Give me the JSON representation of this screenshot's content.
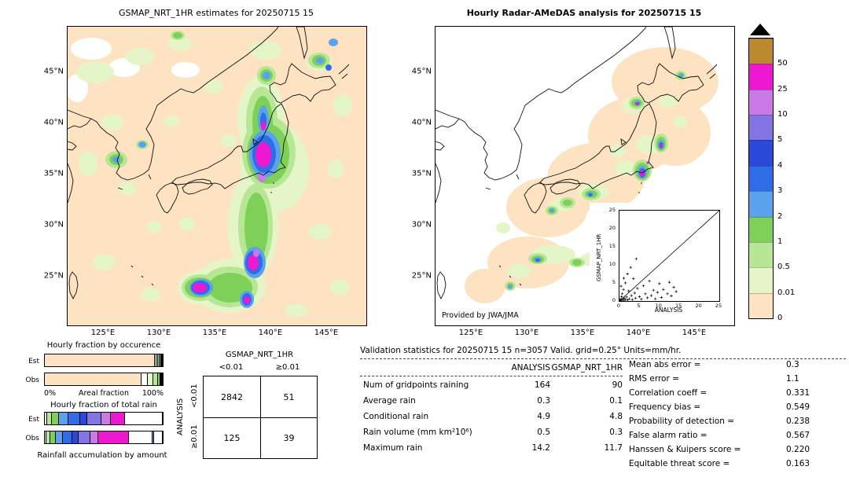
{
  "chart_data": [
    {
      "type": "heatmap",
      "id": "gsmap-map",
      "title": "GSMAP_NRT_1HR estimates for 20250715 15",
      "yticks": [
        "45°N",
        "40°N",
        "35°N",
        "30°N",
        "25°N"
      ],
      "xticks": [
        "125°E",
        "130°E",
        "135°E",
        "140°E",
        "145°E"
      ]
    },
    {
      "type": "heatmap",
      "id": "radar-map",
      "title": "Hourly Radar-AMeDAS analysis for 20250715 15",
      "credit": "Provided by JWA/JMA",
      "yticks": [
        "45°N",
        "40°N",
        "35°N",
        "30°N",
        "25°N"
      ],
      "xticks": [
        "125°E",
        "130°E",
        "135°E",
        "140°E",
        "145°E"
      ]
    },
    {
      "type": "colorbar",
      "units": "mm/hr",
      "tick_labels": [
        "50",
        "25",
        "10",
        "5",
        "4",
        "3",
        "2",
        "1",
        "0.5",
        "0.01",
        "0"
      ],
      "colors_top_to_bottom": [
        "#bb8a2e",
        "#ef18d2",
        "#ca7ae6",
        "#8274e2",
        "#2b49d8",
        "#2f6ce6",
        "#5aa2ee",
        "#7ed158",
        "#b7e794",
        "#e4f6c8",
        "#fde3c2"
      ],
      "overflow_triangle_color": "#000000"
    },
    {
      "type": "bar",
      "id": "occurrence-fractions",
      "title": "Hourly fraction by occurence",
      "xlabel": "Areal fraction",
      "x_min_label": "0%",
      "x_max_label": "100%",
      "rows": [
        {
          "label": "Est",
          "segments": [
            {
              "c": "#fde3c2",
              "f": 0.935
            },
            {
              "c": "#ffffff",
              "f": 0.012
            },
            {
              "c": "#e4f6c8",
              "f": 0.016
            },
            {
              "c": "#b7e794",
              "f": 0.012
            },
            {
              "c": "#7ed158",
              "f": 0.009
            },
            {
              "c": "#5aa2ee",
              "f": 0.007
            },
            {
              "c": "#2f6ce6",
              "f": 0.005
            },
            {
              "c": "#ef18d2",
              "f": 0.004
            }
          ]
        },
        {
          "label": "Obs",
          "segments": [
            {
              "c": "#fde3c2",
              "f": 0.82
            },
            {
              "c": "#ffffff",
              "f": 0.05
            },
            {
              "c": "#e4f6c8",
              "f": 0.052
            },
            {
              "c": "#b7e794",
              "f": 0.04
            },
            {
              "c": "#7ed158",
              "f": 0.018
            },
            {
              "c": "#5aa2ee",
              "f": 0.01
            },
            {
              "c": "#2f6ce6",
              "f": 0.006
            },
            {
              "c": "#ef18d2",
              "f": 0.004
            }
          ]
        }
      ]
    },
    {
      "type": "bar",
      "id": "total-rain-fractions",
      "title": "Hourly fraction of total rain",
      "xlabel": "Rainfall accumulation by amount",
      "rows": [
        {
          "label": "Est",
          "segments": [
            {
              "c": "#e4f6c8",
              "f": 0.02
            },
            {
              "c": "#b7e794",
              "f": 0.04
            },
            {
              "c": "#7ed158",
              "f": 0.06
            },
            {
              "c": "#5aa2ee",
              "f": 0.08
            },
            {
              "c": "#2f6ce6",
              "f": 0.1
            },
            {
              "c": "#2b49d8",
              "f": 0.06
            },
            {
              "c": "#8274e2",
              "f": 0.12
            },
            {
              "c": "#ca7ae6",
              "f": 0.08
            },
            {
              "c": "#ef18d2",
              "f": 0.12
            },
            {
              "c": "#ffffff",
              "f": 0.32
            }
          ]
        },
        {
          "label": "Obs",
          "segments": [
            {
              "c": "#e4f6c8",
              "f": 0.015
            },
            {
              "c": "#b7e794",
              "f": 0.03
            },
            {
              "c": "#7ed158",
              "f": 0.05
            },
            {
              "c": "#5aa2ee",
              "f": 0.06
            },
            {
              "c": "#2f6ce6",
              "f": 0.08
            },
            {
              "c": "#2b49d8",
              "f": 0.05
            },
            {
              "c": "#8274e2",
              "f": 0.1
            },
            {
              "c": "#ca7ae6",
              "f": 0.07
            },
            {
              "c": "#ef18d2",
              "f": 0.26
            },
            {
              "c": "#ffffff",
              "f": 0.2
            },
            {
              "c": "#5aa2ee",
              "f": 0.012
            },
            {
              "c": "#ffffff",
              "f": 0.073
            }
          ]
        }
      ]
    },
    {
      "type": "table",
      "id": "contingency-table",
      "col_group_label": "GSMAP_NRT_1HR",
      "row_group_label": "ANALYSIS",
      "col_headers": [
        "<0.01",
        "≥0.01"
      ],
      "row_headers": [
        "<0.01",
        "≥0.01"
      ],
      "cells": [
        [
          "2842",
          "51"
        ],
        [
          "125",
          "39"
        ]
      ]
    },
    {
      "type": "table",
      "id": "validation-statistics",
      "title": "Validation statistics for 20250715 15  n=3057 Valid. grid=0.25° Units=mm/hr.",
      "col_headers": [
        "ANALYSIS",
        "GSMAP_NRT_1HR"
      ],
      "rows": [
        {
          "label": "Num of gridpoints raining",
          "analysis": "164",
          "gsmap": "90"
        },
        {
          "label": "Average rain",
          "analysis": "0.3",
          "gsmap": "0.1"
        },
        {
          "label": "Conditional rain",
          "analysis": "4.9",
          "gsmap": "4.8"
        },
        {
          "label": "Rain volume (mm km²10⁶)",
          "analysis": "0.5",
          "gsmap": "0.3"
        },
        {
          "label": "Maximum rain",
          "analysis": "14.2",
          "gsmap": "11.7"
        }
      ],
      "metrics": [
        {
          "label": "Mean abs error =",
          "value": "0.3"
        },
        {
          "label": "RMS error =",
          "value": "1.1"
        },
        {
          "label": "Correlation coeff =",
          "value": "0.331"
        },
        {
          "label": "Frequency bias =",
          "value": "0.549"
        },
        {
          "label": "Probability of detection =",
          "value": "0.238"
        },
        {
          "label": "False alarm ratio =",
          "value": "0.567"
        },
        {
          "label": "Hanssen & Kuipers score =",
          "value": "0.220"
        },
        {
          "label": "Equitable threat score =",
          "value": "0.163"
        }
      ]
    },
    {
      "type": "scatter",
      "id": "inset-scatter",
      "xlabel": "ANALYSIS",
      "ylabel": "GSMAP_NRT_1HR",
      "xlim": [
        0,
        25
      ],
      "ylim": [
        0,
        25
      ],
      "xticks": [
        0,
        5,
        10,
        15,
        20,
        25
      ],
      "yticks": [
        0,
        5,
        10,
        15,
        20,
        25
      ],
      "identity_line": true,
      "points": [
        [
          0.1,
          0.1
        ],
        [
          0.2,
          0.5
        ],
        [
          0.3,
          0.2
        ],
        [
          0.5,
          1.2
        ],
        [
          0.5,
          0.3
        ],
        [
          0.7,
          2.0
        ],
        [
          0.8,
          0.6
        ],
        [
          1.0,
          0.2
        ],
        [
          1.0,
          3.2
        ],
        [
          1.2,
          0.8
        ],
        [
          1.5,
          5.0
        ],
        [
          1.5,
          0.4
        ],
        [
          1.8,
          1.1
        ],
        [
          2.0,
          0.3
        ],
        [
          2.0,
          7.5
        ],
        [
          2.3,
          2.8
        ],
        [
          2.5,
          0.6
        ],
        [
          2.8,
          9.3
        ],
        [
          3.0,
          1.5
        ],
        [
          3.2,
          0.4
        ],
        [
          3.5,
          6.2
        ],
        [
          3.8,
          2.2
        ],
        [
          4.0,
          0.8
        ],
        [
          4.2,
          11.7
        ],
        [
          4.5,
          3.5
        ],
        [
          5.0,
          1.2
        ],
        [
          5.5,
          0.5
        ],
        [
          6.0,
          4.2
        ],
        [
          6.5,
          2.0
        ],
        [
          7.0,
          0.9
        ],
        [
          7.5,
          5.5
        ],
        [
          8.0,
          1.5
        ],
        [
          8.5,
          3.0
        ],
        [
          9.0,
          0.6
        ],
        [
          9.5,
          2.4
        ],
        [
          10.0,
          4.8
        ],
        [
          10.5,
          1.0
        ],
        [
          11.0,
          3.2
        ],
        [
          12.0,
          2.0
        ],
        [
          12.5,
          5.2
        ],
        [
          13.0,
          1.4
        ],
        [
          13.6,
          3.8
        ],
        [
          14.2,
          2.6
        ],
        [
          0.4,
          4.1
        ],
        [
          1.1,
          6.3
        ]
      ]
    }
  ]
}
